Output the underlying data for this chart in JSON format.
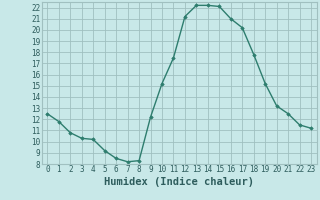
{
  "xlabel": "Humidex (Indice chaleur)",
  "ylabel": "",
  "x": [
    0,
    1,
    2,
    3,
    4,
    5,
    6,
    7,
    8,
    9,
    10,
    11,
    12,
    13,
    14,
    15,
    16,
    17,
    18,
    19,
    20,
    21,
    22,
    23
  ],
  "y": [
    12.5,
    11.8,
    10.8,
    10.3,
    10.2,
    9.2,
    8.5,
    8.2,
    8.3,
    12.2,
    15.2,
    17.5,
    21.2,
    22.2,
    22.2,
    22.1,
    21.0,
    20.2,
    17.8,
    15.2,
    13.2,
    12.5,
    11.5,
    11.2
  ],
  "line_color": "#2e7d6e",
  "bg_color": "#c8e8e8",
  "grid_color": "#a0c0c0",
  "tick_color": "#2e5d5d",
  "ylim": [
    8,
    22.5
  ],
  "xlim": [
    -0.5,
    23.5
  ],
  "yticks": [
    8,
    9,
    10,
    11,
    12,
    13,
    14,
    15,
    16,
    17,
    18,
    19,
    20,
    21,
    22
  ],
  "xticks": [
    0,
    1,
    2,
    3,
    4,
    5,
    6,
    7,
    8,
    9,
    10,
    11,
    12,
    13,
    14,
    15,
    16,
    17,
    18,
    19,
    20,
    21,
    22,
    23
  ],
  "marker": "D",
  "markersize": 1.8,
  "linewidth": 1.0,
  "label_fontsize": 7.5,
  "tick_fontsize": 5.5
}
